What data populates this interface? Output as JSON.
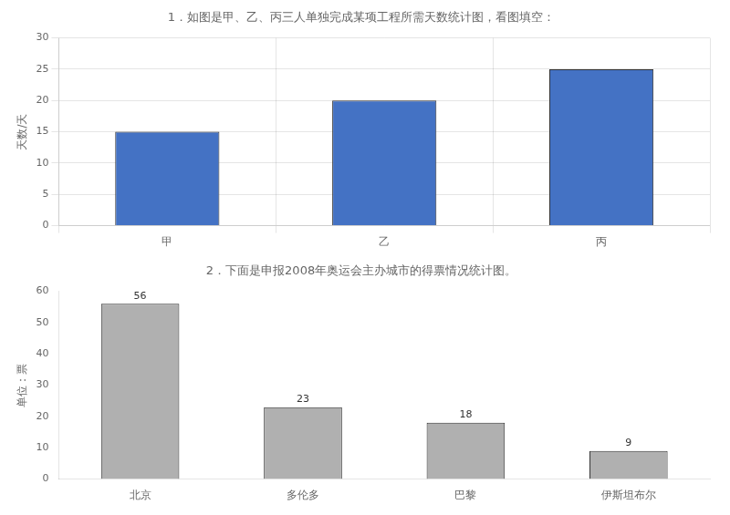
{
  "chart_data": [
    {
      "type": "bar",
      "title": "1．如图是甲、乙、丙三人单独完成某项工程所需天数统计图，看图填空：",
      "y_label": "天数/天",
      "categories": [
        "甲",
        "乙",
        "丙"
      ],
      "values": [
        15,
        20,
        25
      ],
      "color": "#4472C4",
      "ylim": [
        0,
        30
      ],
      "yticks": [
        0,
        5,
        10,
        15,
        20,
        25,
        30
      ],
      "grid": true
    },
    {
      "type": "bar",
      "title": "2．下面是申报2008年奥运会主办城市的得票情况统计图。",
      "y_label": "单位：票",
      "categories": [
        "北京",
        "多伦多",
        "巴黎",
        "伊斯坦布尔"
      ],
      "values": [
        56,
        23,
        18,
        9
      ],
      "color": "#b0b0b0",
      "ylim": [
        0,
        60
      ],
      "yticks": [
        0,
        10,
        20,
        30,
        40,
        50,
        60
      ],
      "grid": false,
      "data_labels": true
    }
  ]
}
